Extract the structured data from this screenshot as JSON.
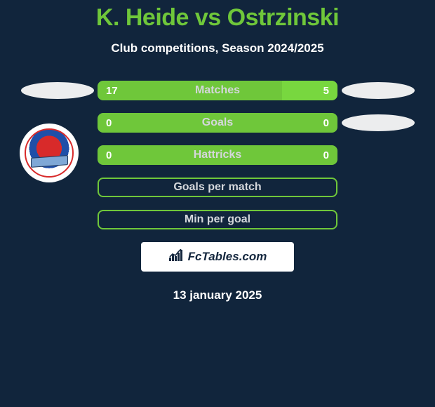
{
  "title": "K. Heide vs Ostrzinski",
  "subtitle": "Club competitions, Season 2024/2025",
  "date": "13 january 2025",
  "brand": "FcTables.com",
  "colors": {
    "background": "#11253c",
    "accent": "#6fc73a",
    "bar_empty": "transparent",
    "text_primary": "#ffffff",
    "text_label": "#d4d7db",
    "ellipse": "#ecedee",
    "brand_box_bg": "#ffffff",
    "brand_text": "#15283f"
  },
  "bar": {
    "track_width": 342,
    "track_height": 28,
    "border_radius": 8,
    "label_fontsize": 16,
    "value_fontsize": 15
  },
  "rows": [
    {
      "label": "Matches",
      "left": "17",
      "right": "5",
      "left_pct": 77,
      "right_pct": 23,
      "mode": "split",
      "show_left_badge": true,
      "show_right_badge": true
    },
    {
      "label": "Goals",
      "left": "0",
      "right": "0",
      "left_pct": 100,
      "right_pct": 0,
      "mode": "full",
      "show_left_badge": false,
      "show_right_badge": true
    },
    {
      "label": "Hattricks",
      "left": "0",
      "right": "0",
      "left_pct": 100,
      "right_pct": 0,
      "mode": "full",
      "show_left_badge": false,
      "show_right_badge": false
    },
    {
      "label": "Goals per match",
      "left": "",
      "right": "",
      "left_pct": 0,
      "right_pct": 0,
      "mode": "outline",
      "show_left_badge": false,
      "show_right_badge": false
    },
    {
      "label": "Min per goal",
      "left": "",
      "right": "",
      "left_pct": 0,
      "right_pct": 0,
      "mode": "outline",
      "show_left_badge": false,
      "show_right_badge": false
    }
  ],
  "club_badge": {
    "visible": true,
    "name": "SpVgg Unterhaching",
    "position_row": 1
  }
}
